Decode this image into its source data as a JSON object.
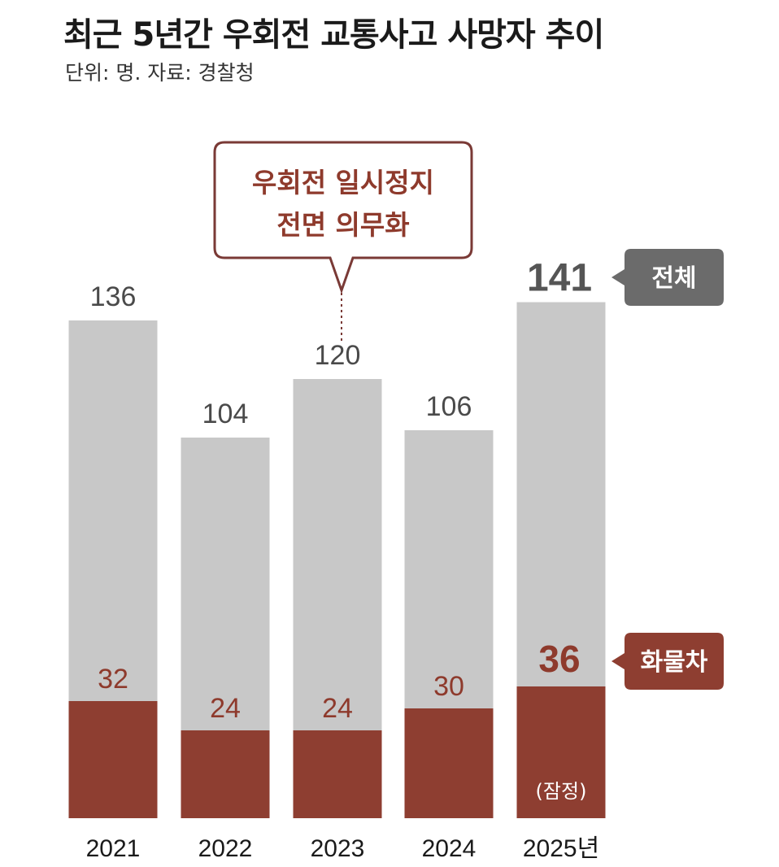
{
  "title": "최근 5년간 우회전 교통사고 사망자 추이",
  "subtitle": "단위: 명. 자료: 경찰청",
  "colors": {
    "total": "#c8c8c8",
    "truck": "#8e3e31",
    "total_tag": "#6b6b6b",
    "truck_tag": "#8e3e31",
    "callout_border": "#7a3a36"
  },
  "callout": {
    "line1": "우회전 일시정지",
    "line2": "전면 의무화",
    "category": "2023"
  },
  "legend": {
    "total": "전체",
    "truck": "화물차"
  },
  "chart_data": {
    "type": "bar",
    "categories": [
      "2021",
      "2022",
      "2023",
      "2024",
      "2025년"
    ],
    "series": [
      {
        "name": "전체",
        "values": [
          136,
          104,
          120,
          106,
          141
        ]
      },
      {
        "name": "화물차",
        "values": [
          32,
          24,
          24,
          30,
          36
        ]
      }
    ],
    "ylim": [
      0,
      150
    ],
    "annotations": [
      {
        "category": "2025년",
        "text": "(잠정)"
      }
    ]
  }
}
